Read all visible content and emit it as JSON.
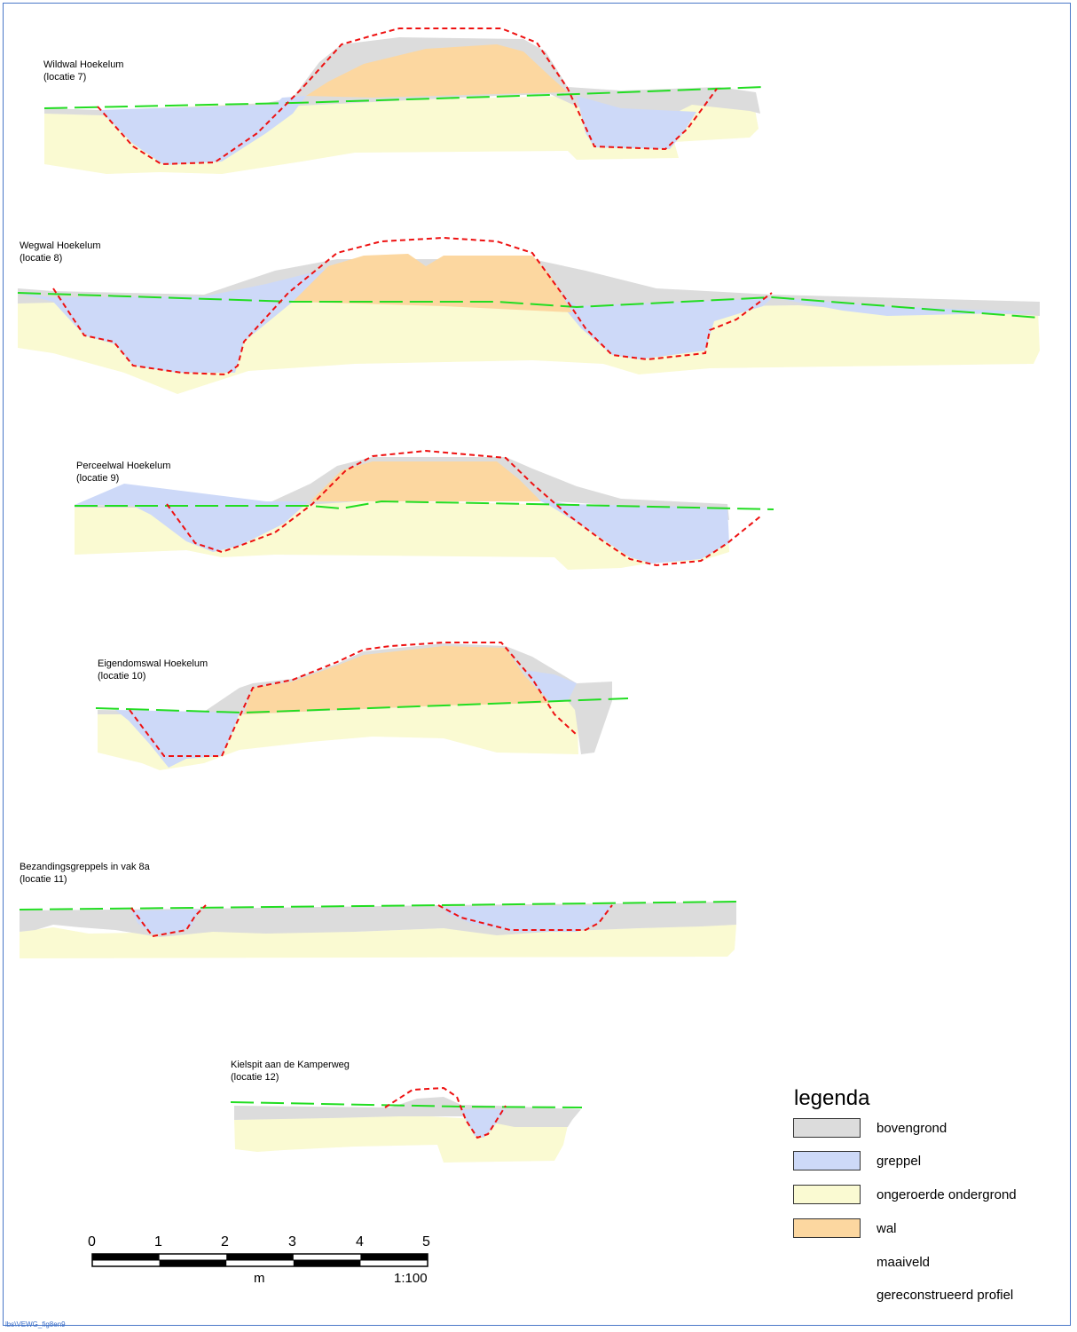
{
  "profiles": [
    {
      "title": "Wildwal Hoekelum",
      "location": "(locatie 7)"
    },
    {
      "title": "Wegwal Hoekelum",
      "location": "(locatie 8)"
    },
    {
      "title": "Perceelwal Hoekelum",
      "location": "(locatie 9)"
    },
    {
      "title": "Eigendomswal Hoekelum",
      "location": "(locatie 10)"
    },
    {
      "title": "Bezandingsgreppels in vak 8a",
      "location": "(locatie 11)"
    },
    {
      "title": "Kielspit aan de Kamperweg",
      "location": "(locatie 12)"
    }
  ],
  "legend": {
    "title": "legenda",
    "items": [
      {
        "label": "bovengrond",
        "color": "#dcdcdc"
      },
      {
        "label": "greppel",
        "color": "#cdd9f8"
      },
      {
        "label": "ongeroerde ondergrond",
        "color": "#fafad2"
      },
      {
        "label": "wal",
        "color": "#fcd7a0"
      },
      {
        "label": "maaiveld",
        "color": "#22dd22",
        "style": "long-dash"
      },
      {
        "label": "gereconstrueerd profiel",
        "color": "#ee1111",
        "style": "short-dash"
      }
    ]
  },
  "scalebar": {
    "ticks": [
      "0",
      "1",
      "2",
      "3",
      "4",
      "5"
    ],
    "unit": "m",
    "ratio": "1:100"
  },
  "footer": "lbs\\VEWG_fig8en9"
}
